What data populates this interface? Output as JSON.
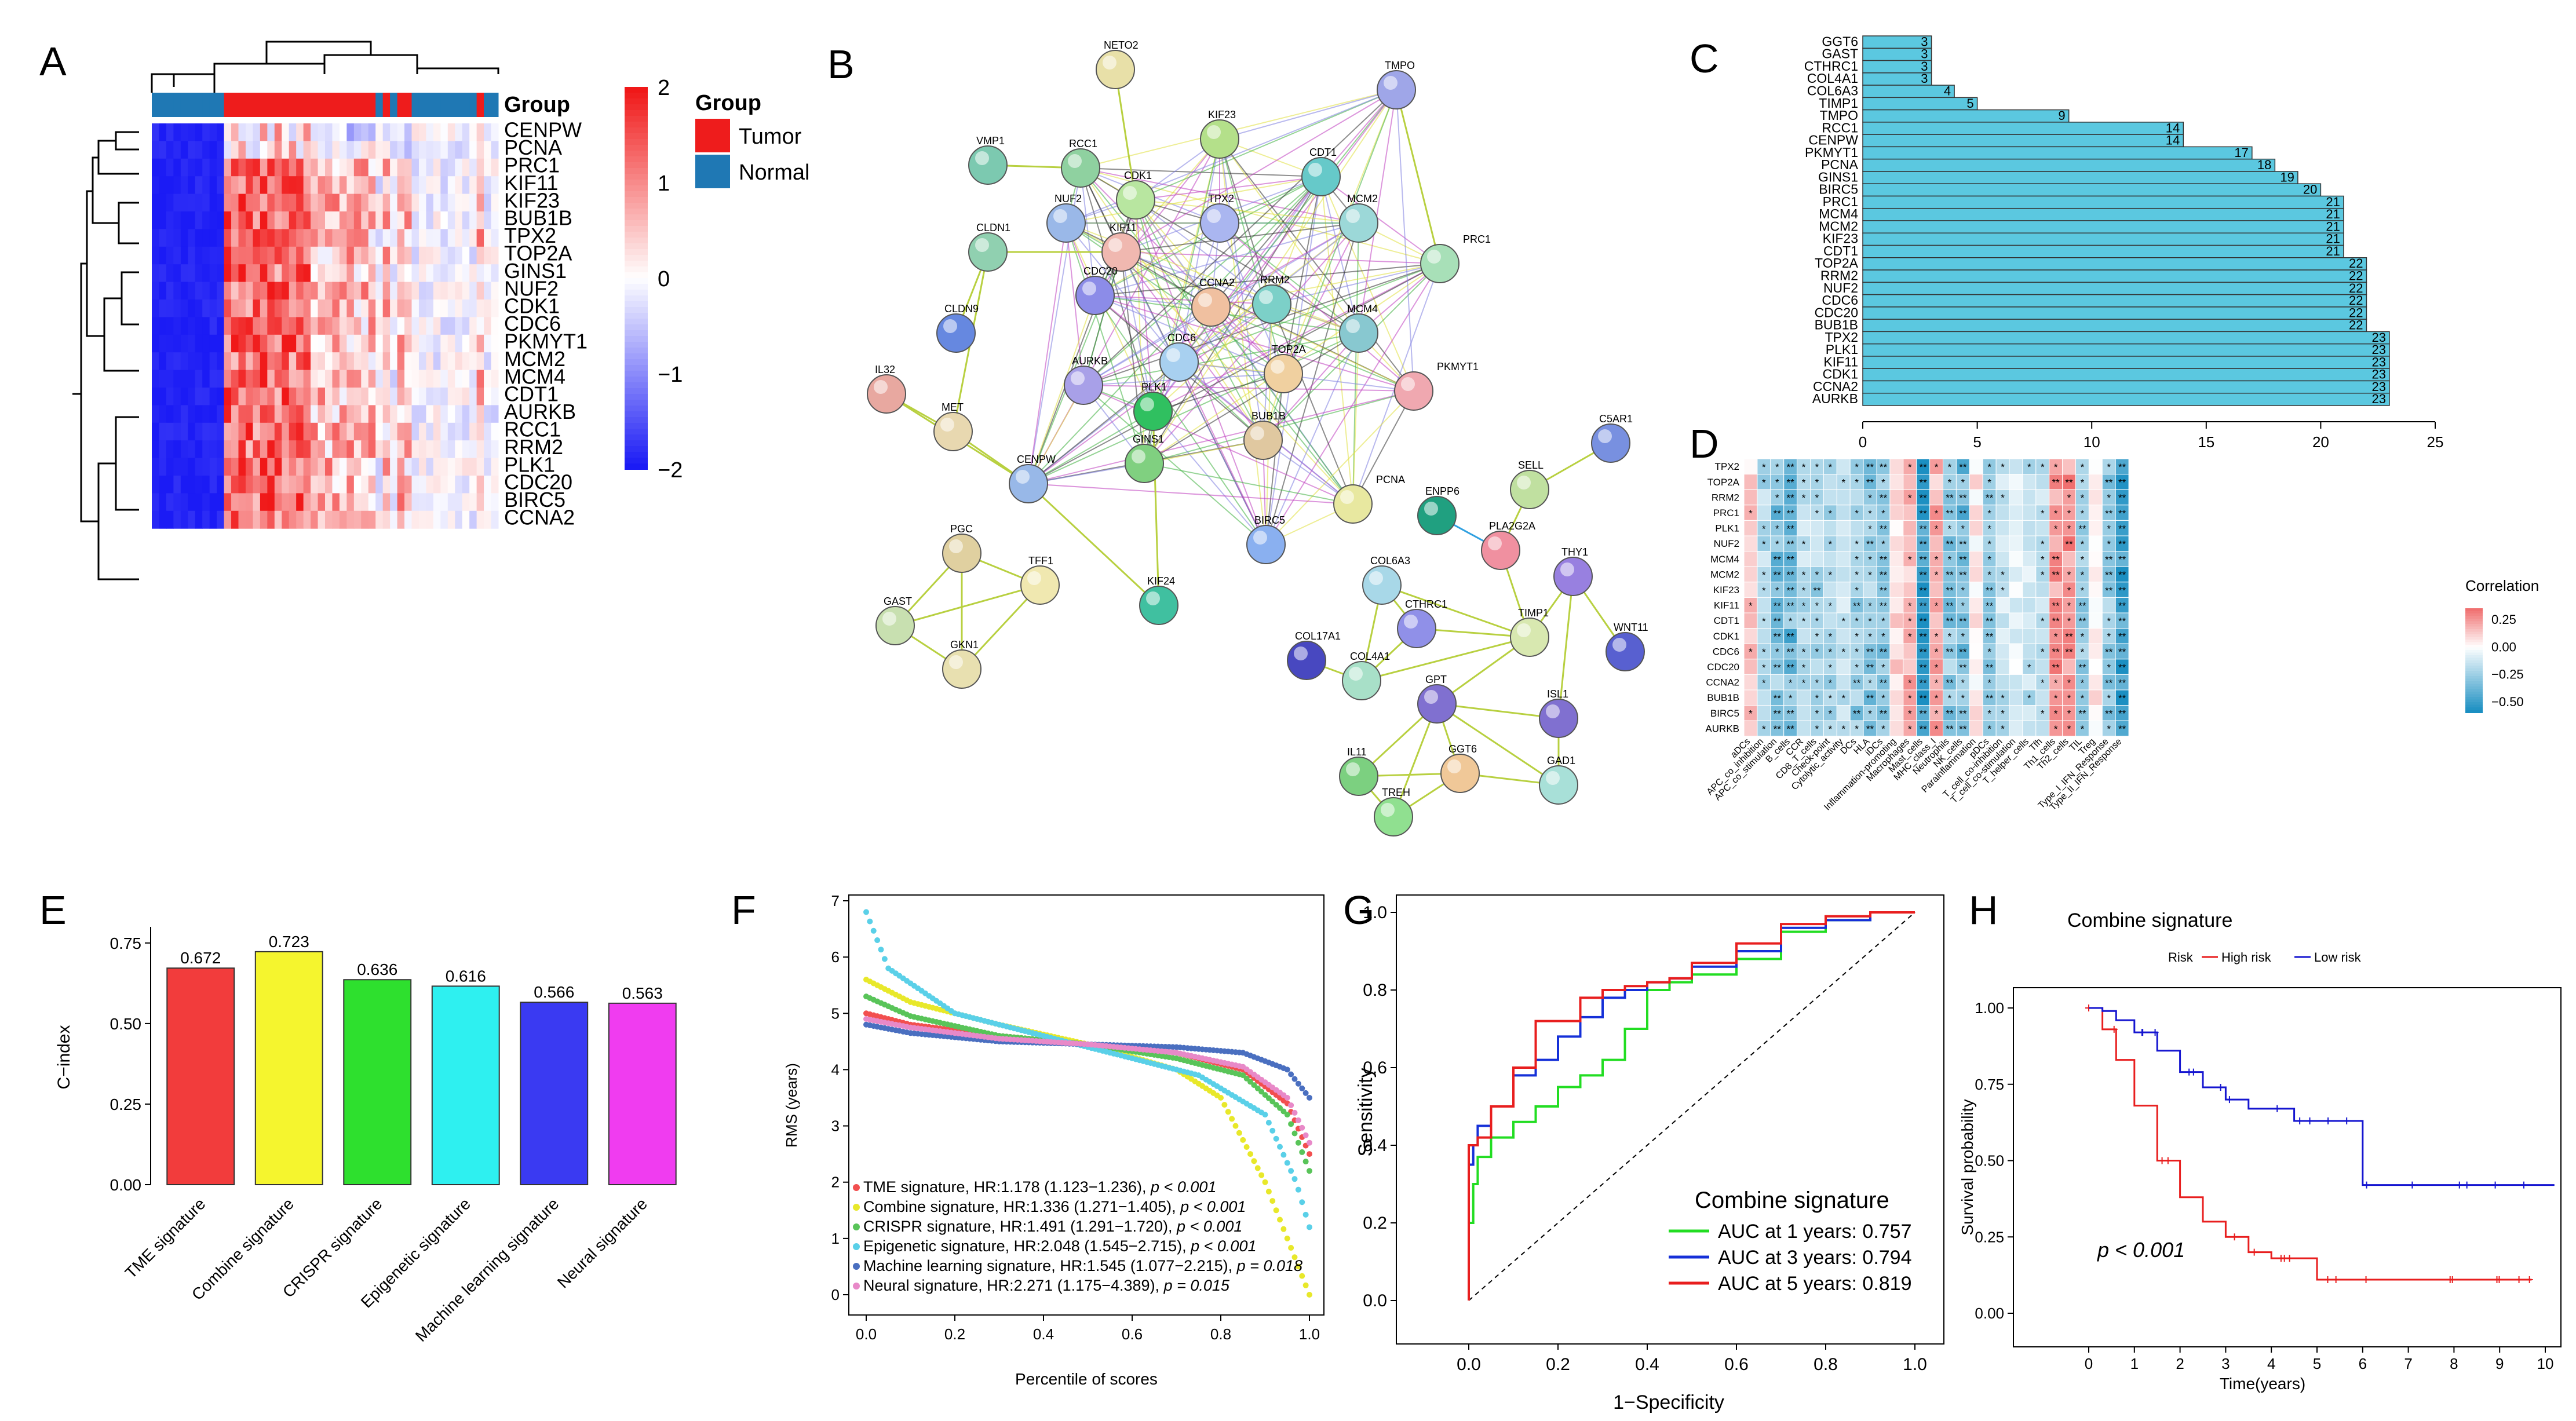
{
  "panel_labels": [
    "A",
    "B",
    "C",
    "D",
    "E",
    "F",
    "G",
    "H"
  ],
  "chart_data": [
    {
      "panel": "A",
      "type": "heatmap",
      "rows": [
        "CENPW",
        "PCNA",
        "PRC1",
        "KIF11",
        "KIF23",
        "BUB1B",
        "TPX2",
        "TOP2A",
        "GINS1",
        "NUF2",
        "CDK1",
        "CDC6",
        "PKMYT1",
        "MCM2",
        "MCM4",
        "CDT1",
        "AURKB",
        "RCC1",
        "RRM2",
        "PLK1",
        "CDC20",
        "BIRC5",
        "CCNA2"
      ],
      "annotation_title": "Group",
      "legend_title": "Group",
      "legend_entries": [
        {
          "label": "Tumor",
          "color": "#ee1c1c"
        },
        {
          "label": "Normal",
          "color": "#1f78b4"
        }
      ],
      "colorbar_ticks": [
        "2",
        "1",
        "0",
        "−1",
        "−2"
      ],
      "colorbar_range": [
        -2,
        2
      ],
      "color_low": "#1b1bf5",
      "color_mid": "#ffffff",
      "color_high": "#f01818"
    },
    {
      "panel": "C",
      "type": "bar",
      "orientation": "horizontal",
      "categories": [
        "GGT6",
        "GAST",
        "CTHRC1",
        "COL4A1",
        "COL6A3",
        "TIMP1",
        "TMPO",
        "RCC1",
        "CENPW",
        "PKMYT1",
        "PCNA",
        "GINS1",
        "BIRC5",
        "PRC1",
        "MCM4",
        "MCM2",
        "KIF23",
        "CDT1",
        "TOP2A",
        "RRM2",
        "NUF2",
        "CDC6",
        "CDC20",
        "BUB1B",
        "TPX2",
        "PLK1",
        "KIF11",
        "CDK1",
        "CCNA2",
        "AURKB"
      ],
      "values": [
        3,
        3,
        3,
        3,
        4,
        5,
        9,
        14,
        14,
        17,
        18,
        19,
        20,
        21,
        21,
        21,
        21,
        21,
        22,
        22,
        22,
        22,
        22,
        22,
        23,
        23,
        23,
        23,
        23,
        23
      ],
      "xlim": [
        0,
        25
      ],
      "xticks": [
        "0",
        "5",
        "10",
        "15",
        "20",
        "25"
      ],
      "bar_color": "#5bc8e0"
    },
    {
      "panel": "D",
      "type": "heatmap",
      "rows": [
        "TPX2",
        "TOP2A",
        "RRM2",
        "PRC1",
        "PLK1",
        "NUF2",
        "MCM4",
        "MCM2",
        "KIF23",
        "KIF11",
        "CDT1",
        "CDK1",
        "CDC6",
        "CDC20",
        "CCNA2",
        "BUB1B",
        "BIRC5",
        "AURKB"
      ],
      "columns": [
        "aDCs",
        "APC_co_inhibition",
        "APC_co_stimulation",
        "B_cells",
        "CCR",
        "CD8_T_cells",
        "Check-point",
        "Cytolytic_activity",
        "DCs",
        "HLA",
        "iDCs",
        "Inflammation-promoting",
        "Macrophages",
        "Mast_cells",
        "MHC_class_I",
        "Neutrophils",
        "NK_cells",
        "Parainflammation",
        "pDCs",
        "T_cell_co-inhibition",
        "T_cell_co-stimulation",
        "T_helper_cells",
        "Tfh",
        "Th1_cells",
        "Th2_cells",
        "TIL",
        "Treg",
        "Type_I_IFN_Response",
        "Type_II_IFN_Response"
      ],
      "legend_title": "Correlation",
      "colorbar_ticks": [
        "0.25",
        "0.00",
        "−0.25",
        "−0.50"
      ],
      "colorbar_range": [
        -0.6,
        0.35
      ],
      "sig_marks": [
        "*",
        "**"
      ]
    },
    {
      "panel": "E",
      "type": "bar",
      "categories": [
        "TME signature",
        "Combine signature",
        "CRISPR signature",
        "Epigenetic signature",
        "Machine learning signature",
        "Neural signature"
      ],
      "values": [
        0.672,
        0.723,
        0.636,
        0.616,
        0.566,
        0.563
      ],
      "value_labels": [
        "0.672",
        "0.723",
        "0.636",
        "0.616",
        "0.566",
        "0.563"
      ],
      "colors": [
        "#f23c3c",
        "#f5f52e",
        "#2ee02e",
        "#2ef0f0",
        "#3a3af2",
        "#f03cf0"
      ],
      "ylabel": "C−index",
      "ylim": [
        0,
        0.8
      ],
      "yticks": [
        "0.00",
        "0.25",
        "0.50",
        "0.75"
      ]
    },
    {
      "panel": "F",
      "type": "scatter",
      "xlabel": "Percentile of scores",
      "ylabel": "RMS (years)",
      "xlim": [
        0,
        1
      ],
      "ylim": [
        0,
        7
      ],
      "xticks": [
        "0.0",
        "0.2",
        "0.4",
        "0.6",
        "0.8",
        "1.0"
      ],
      "yticks": [
        "0",
        "1",
        "2",
        "3",
        "4",
        "5",
        "6",
        "7"
      ],
      "series": [
        {
          "name": "TME signature",
          "color": "#f24f4f",
          "label": "TME signature, HR:1.178 (1.123−1.236), ",
          "p_label": "p < 0.001",
          "x": [
            0,
            0.1,
            0.3,
            0.5,
            0.7,
            0.85,
            0.95,
            1
          ],
          "y": [
            5.0,
            4.8,
            4.6,
            4.45,
            4.3,
            4.0,
            3.4,
            2.5
          ]
        },
        {
          "name": "Combine signature",
          "color": "#e8e82a",
          "label": "Combine signature, HR:1.336 (1.271−1.405), ",
          "p_label": "p < 0.001",
          "x": [
            0,
            0.1,
            0.3,
            0.5,
            0.7,
            0.8,
            0.9,
            1
          ],
          "y": [
            5.6,
            5.2,
            4.8,
            4.45,
            4.0,
            3.5,
            2.0,
            0.0
          ]
        },
        {
          "name": "CRISPR signature",
          "color": "#59c459",
          "label": "CRISPR signature, HR:1.491 (1.291−1.720), ",
          "p_label": "p < 0.001",
          "x": [
            0,
            0.1,
            0.3,
            0.5,
            0.7,
            0.85,
            0.95,
            1
          ],
          "y": [
            5.3,
            4.95,
            4.6,
            4.45,
            4.2,
            3.9,
            3.2,
            2.2
          ]
        },
        {
          "name": "Epigenetic signature",
          "color": "#5ad0e8",
          "label": "Epigenetic signature, HR:2.048 (1.545−2.715), ",
          "p_label": "p < 0.001",
          "x": [
            0,
            0.05,
            0.2,
            0.5,
            0.75,
            0.9,
            0.97,
            1
          ],
          "y": [
            6.8,
            5.8,
            5.0,
            4.4,
            3.9,
            3.2,
            2.0,
            1.2
          ]
        },
        {
          "name": "Machine learning signature",
          "color": "#4a6fc0",
          "label": "Machine learning signature, HR:1.545 (1.077−2.215), ",
          "p_label": "p = 0.018",
          "x": [
            0,
            0.1,
            0.3,
            0.5,
            0.7,
            0.85,
            0.95,
            1
          ],
          "y": [
            4.8,
            4.65,
            4.5,
            4.45,
            4.4,
            4.3,
            4.0,
            3.5
          ]
        },
        {
          "name": "Neural signature",
          "color": "#e889c8",
          "label": "Neural signature, HR:2.271 (1.175−4.389), ",
          "p_label": "p = 0.015",
          "x": [
            0,
            0.1,
            0.3,
            0.5,
            0.7,
            0.85,
            0.95,
            1
          ],
          "y": [
            4.9,
            4.75,
            4.55,
            4.45,
            4.3,
            4.05,
            3.5,
            2.7
          ]
        }
      ]
    },
    {
      "panel": "G",
      "type": "line",
      "xlabel": "1−Specificity",
      "ylabel": "Sensitivity",
      "xlim": [
        0,
        1
      ],
      "ylim": [
        0,
        1
      ],
      "xticks": [
        "0.0",
        "0.2",
        "0.4",
        "0.6",
        "0.8",
        "1.0"
      ],
      "yticks": [
        "0.0",
        "0.2",
        "0.4",
        "0.6",
        "0.8",
        "1.0"
      ],
      "legend_title": "Combine signature",
      "series": [
        {
          "name": "AUC at 1 years: 0.757",
          "color": "#22dd22",
          "x": [
            0,
            0.01,
            0.02,
            0.05,
            0.1,
            0.15,
            0.2,
            0.25,
            0.3,
            0.35,
            0.4,
            0.45,
            0.5,
            0.6,
            0.7,
            0.8,
            0.9,
            1
          ],
          "y": [
            0,
            0.2,
            0.3,
            0.37,
            0.42,
            0.46,
            0.5,
            0.55,
            0.58,
            0.62,
            0.7,
            0.8,
            0.82,
            0.84,
            0.88,
            0.95,
            0.98,
            1
          ]
        },
        {
          "name": "AUC at 3 years: 0.794",
          "color": "#1530d8",
          "x": [
            0,
            0.01,
            0.02,
            0.05,
            0.1,
            0.15,
            0.2,
            0.25,
            0.3,
            0.35,
            0.4,
            0.45,
            0.5,
            0.6,
            0.7,
            0.8,
            0.9,
            1
          ],
          "y": [
            0,
            0.35,
            0.4,
            0.45,
            0.5,
            0.58,
            0.62,
            0.68,
            0.73,
            0.78,
            0.8,
            0.82,
            0.83,
            0.86,
            0.9,
            0.96,
            0.98,
            1
          ]
        },
        {
          "name": "AUC at 5 years: 0.819",
          "color": "#e81e1e",
          "x": [
            0,
            0.01,
            0.02,
            0.05,
            0.1,
            0.15,
            0.2,
            0.25,
            0.3,
            0.35,
            0.4,
            0.45,
            0.5,
            0.6,
            0.7,
            0.8,
            0.9,
            1
          ],
          "y": [
            0,
            0.4,
            0.4,
            0.42,
            0.5,
            0.6,
            0.72,
            0.72,
            0.78,
            0.8,
            0.81,
            0.82,
            0.83,
            0.87,
            0.92,
            0.97,
            0.99,
            1
          ]
        }
      ]
    },
    {
      "panel": "H",
      "type": "line",
      "title": "Combine signature",
      "xlabel": "Time(years)",
      "ylabel": "Survival probability",
      "xlim": [
        0,
        10.2
      ],
      "ylim": [
        0,
        1
      ],
      "xticks": [
        "0",
        "1",
        "2",
        "3",
        "4",
        "5",
        "6",
        "7",
        "8",
        "9",
        "10"
      ],
      "yticks": [
        "0.00",
        "0.25",
        "0.50",
        "0.75",
        "1.00"
      ],
      "legend_title": "Risk",
      "annotation": "p < 0.001",
      "series": [
        {
          "name": "High risk",
          "color": "#e81e1e",
          "x": [
            0,
            0.3,
            0.6,
            1.0,
            1.5,
            2.0,
            2.5,
            3.0,
            3.5,
            4.0,
            5.0,
            5.5,
            6.0,
            9.7
          ],
          "y": [
            1.0,
            0.93,
            0.83,
            0.68,
            0.5,
            0.38,
            0.3,
            0.25,
            0.2,
            0.18,
            0.11,
            0.11,
            0.11,
            0.11
          ]
        },
        {
          "name": "Low risk",
          "color": "#1515d0",
          "x": [
            0,
            0.3,
            0.6,
            1.0,
            1.5,
            2.0,
            2.5,
            3.0,
            3.5,
            4.0,
            4.5,
            5.0,
            5.5,
            5.9,
            6.0,
            7.0,
            10.2
          ],
          "y": [
            1.0,
            0.99,
            0.96,
            0.92,
            0.86,
            0.79,
            0.74,
            0.7,
            0.67,
            0.67,
            0.63,
            0.63,
            0.63,
            0.63,
            0.42,
            0.42,
            0.42
          ]
        }
      ]
    }
  ],
  "network": {
    "nodes": [
      "NETO2",
      "TMPO",
      "VMP1",
      "RCC1",
      "KIF23",
      "CDT1",
      "CDK1",
      "TPX2",
      "MCM2",
      "NUF2",
      "KIF11",
      "PRC1",
      "CLDN1",
      "CDC20",
      "CCNA2",
      "RRM2",
      "MCM4",
      "CLDN9",
      "CDC6",
      "AURKB",
      "TOP2A",
      "PKMYT1",
      "IL32",
      "MET",
      "PLK1",
      "BUB1B",
      "CENPW",
      "GINS1",
      "PCNA",
      "BIRC5",
      "C5AR1",
      "SELL",
      "ENPP6",
      "PLA2G2A",
      "PGC",
      "TFF1",
      "GAST",
      "GKN1",
      "KIF24",
      "COL6A3",
      "THY1",
      "CTHRC1",
      "TIMP1",
      "WNT11",
      "COL17A1",
      "COL4A1",
      "GPT",
      "ISL1",
      "GGT6",
      "GAD1",
      "IL11",
      "TREH"
    ]
  }
}
